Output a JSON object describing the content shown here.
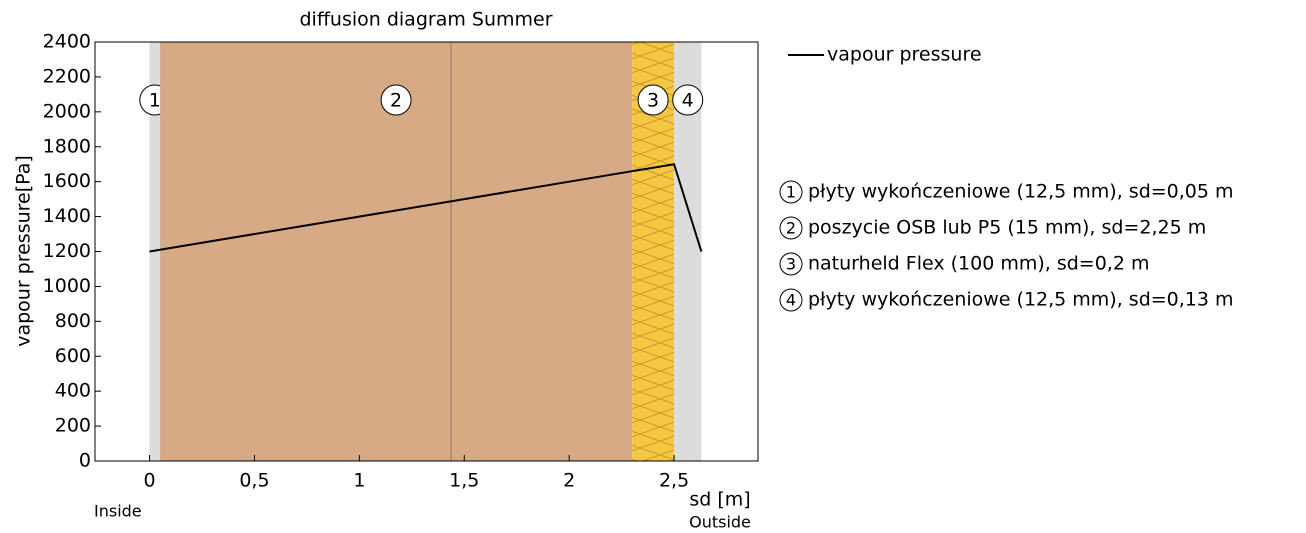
{
  "chart_data": {
    "type": "line",
    "title": "diffusion diagram Summer",
    "x_label": "sd [m]",
    "y_label": "vapour pressure[Pa]",
    "inside_label": "Inside",
    "outside_label": "Outside",
    "xlim": [
      -0.26,
      2.9
    ],
    "ylim": [
      0,
      2400
    ],
    "xticks": [
      0,
      {
        "value": 0.5,
        "label": "0,5"
      },
      1,
      {
        "value": 1.5,
        "label": "1,5"
      },
      2,
      {
        "value": 2.5,
        "label": "2,5"
      }
    ],
    "yticks": [
      0,
      200,
      400,
      600,
      800,
      1000,
      1200,
      1400,
      1600,
      1800,
      2000,
      2200,
      2400
    ],
    "layers": [
      {
        "number": "1",
        "from": 0,
        "to": 0.05,
        "color": "#dcdcdc",
        "name": "płyty wykończeniowe (12,5 mm), sd=0,05 m"
      },
      {
        "number": "2",
        "from": 0.05,
        "to": 2.3,
        "color": "#d6aa85",
        "name": "poszycie OSB lub P5 (15 mm), sd=2,25 m"
      },
      {
        "number": "3",
        "from": 2.3,
        "to": 2.5,
        "color": "#f5c842",
        "name": "naturheld Flex (100 mm), sd=0,2 m"
      },
      {
        "number": "4",
        "from": 2.5,
        "to": 2.63,
        "color": "#dcdcdc",
        "name": "płyty wykończeniowe (12,5 mm), sd=0,13 m"
      }
    ],
    "series": [
      {
        "name": "vapour pressure",
        "color": "#000000",
        "x": [
          0,
          0.05,
          2.3,
          2.5,
          2.63
        ],
        "values": [
          1200,
          1210,
          1660,
          1700,
          1200
        ]
      }
    ]
  }
}
